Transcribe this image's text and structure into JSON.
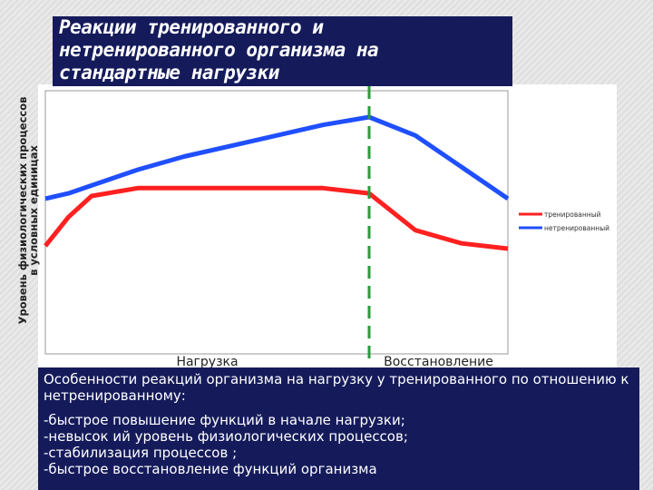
{
  "chart_data": {
    "type": "line",
    "title": "Реакции тренированного и нетренированного организма на стандартные нагрузки",
    "y_label": [
      "Уровень физиологических процессов",
      "в условных единицах"
    ],
    "x": [
      0,
      0.5,
      1,
      2,
      3,
      4,
      5,
      6,
      7,
      8,
      9,
      10
    ],
    "xlim": [
      0,
      10
    ],
    "ylim": [
      0,
      100
    ],
    "series": [
      {
        "name": "тренированный",
        "color": "#ff2020",
        "values": [
          41,
          52,
          60,
          63,
          63,
          63,
          63,
          63,
          61,
          47,
          42,
          40
        ]
      },
      {
        "name": "нетренированный",
        "color": "#1f4fff",
        "values": [
          59,
          61,
          64,
          70,
          75,
          79,
          83,
          87,
          90,
          83,
          71,
          59
        ]
      }
    ],
    "divider_x": 7,
    "divider_color": "#2a9a3a",
    "region_labels": [
      "Нагрузка",
      "Восстановление"
    ]
  },
  "notes": {
    "heading": "Особенности реакций организма на нагрузку у тренированного по отношению к нетренированному:",
    "items": [
      "-быстрое повышение функций в начале нагрузки;",
      "-невысок ий уровень физиологических процессов;",
      "-стабилизация процессов ;",
      "-быстрое восстановление функций организма"
    ]
  }
}
